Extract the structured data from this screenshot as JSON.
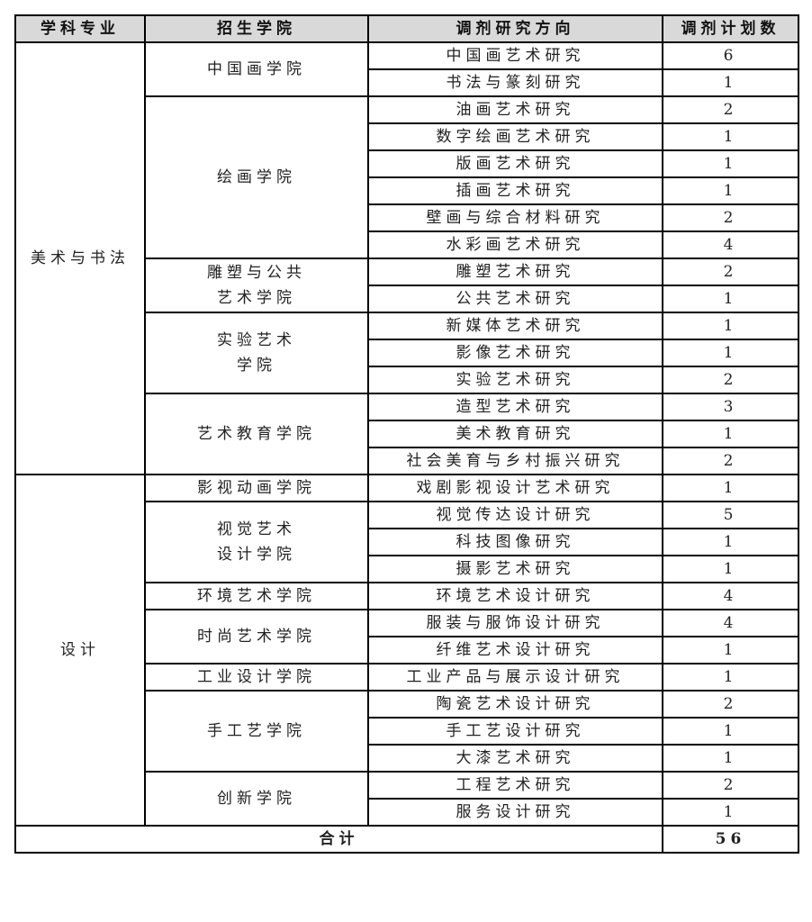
{
  "headers": [
    "学科专业",
    "招生学院",
    "调剂研究方向",
    "调剂计划数"
  ],
  "disciplines": [
    {
      "name": "美术与书法",
      "colleges": [
        {
          "name": "中国画学院",
          "directions": [
            [
              "中国画艺术研究",
              "6"
            ],
            [
              "书法与篆刻研究",
              "1"
            ]
          ]
        },
        {
          "name": "绘画学院",
          "directions": [
            [
              "油画艺术研究",
              "2"
            ],
            [
              "数字绘画艺术研究",
              "1"
            ],
            [
              "版画艺术研究",
              "1"
            ],
            [
              "插画艺术研究",
              "1"
            ],
            [
              "壁画与综合材料研究",
              "2"
            ],
            [
              "水彩画艺术研究",
              "4"
            ]
          ]
        },
        {
          "name": "雕塑与公共\n艺术学院",
          "directions": [
            [
              "雕塑艺术研究",
              "2"
            ],
            [
              "公共艺术研究",
              "1"
            ]
          ]
        },
        {
          "name": "实验艺术\n学院",
          "directions": [
            [
              "新媒体艺术研究",
              "1"
            ],
            [
              "影像艺术研究",
              "1"
            ],
            [
              "实验艺术研究",
              "2"
            ]
          ]
        },
        {
          "name": "艺术教育学院",
          "directions": [
            [
              "造型艺术研究",
              "3"
            ],
            [
              "美术教育研究",
              "1"
            ],
            [
              "社会美育与乡村振兴研究",
              "2"
            ]
          ]
        }
      ]
    },
    {
      "name": "设计",
      "colleges": [
        {
          "name": "影视动画学院",
          "directions": [
            [
              "戏剧影视设计艺术研究",
              "1"
            ]
          ]
        },
        {
          "name": "视觉艺术\n设计学院",
          "directions": [
            [
              "视觉传达设计研究",
              "5"
            ],
            [
              "科技图像研究",
              "1"
            ],
            [
              "摄影艺术研究",
              "1"
            ]
          ]
        },
        {
          "name": "环境艺术学院",
          "directions": [
            [
              "环境艺术设计研究",
              "4"
            ]
          ]
        },
        {
          "name": "时尚艺术学院",
          "directions": [
            [
              "服装与服饰设计研究",
              "4"
            ],
            [
              "纤维艺术设计研究",
              "1"
            ]
          ]
        },
        {
          "name": "工业设计学院",
          "directions": [
            [
              "工业产品与展示设计研究",
              "1"
            ]
          ]
        },
        {
          "name": "手工艺学院",
          "directions": [
            [
              "陶瓷艺术设计研究",
              "2"
            ],
            [
              "手工艺设计研究",
              "1"
            ],
            [
              "大漆艺术研究",
              "1"
            ]
          ]
        },
        {
          "name": "创新学院",
          "directions": [
            [
              "工程艺术研究",
              "2"
            ],
            [
              "服务设计研究",
              "1"
            ]
          ]
        }
      ]
    }
  ],
  "total": {
    "label": "合计",
    "value": "56"
  }
}
